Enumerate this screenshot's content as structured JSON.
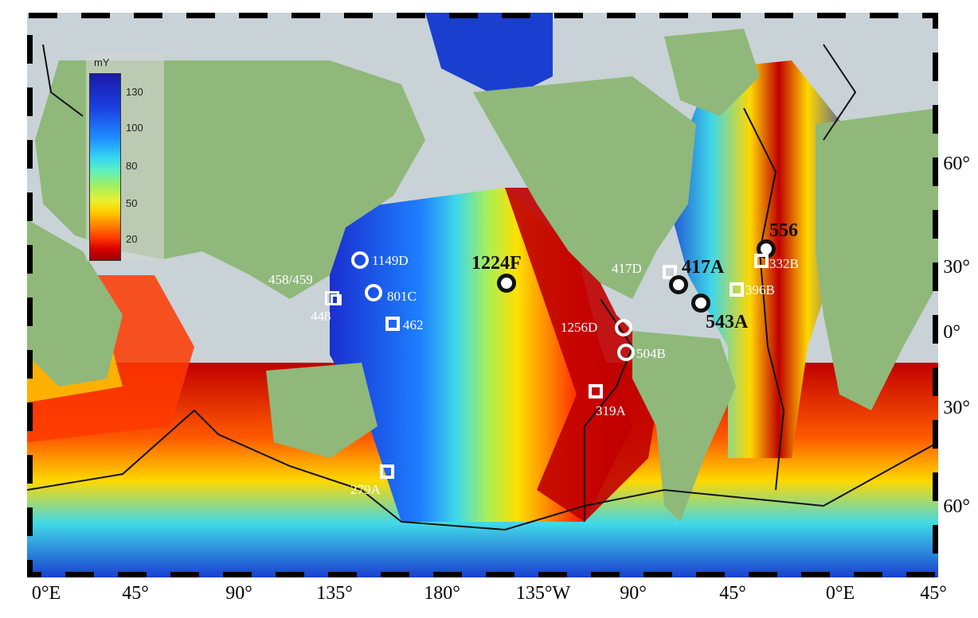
{
  "legend": {
    "title": "mY",
    "ticks": [
      "130",
      "100",
      "80",
      "50",
      "20"
    ]
  },
  "lat_labels": [
    "60°",
    "30°",
    "0°",
    "30°",
    "60°"
  ],
  "lon_labels": [
    "0°E",
    "45°",
    "90°",
    "135°",
    "180°",
    "135°W",
    "90°",
    "45°",
    "0°E",
    "45°"
  ],
  "sites": {
    "s1149D": "1149D",
    "s801C": "801C",
    "s458": "458/459",
    "s448": "448",
    "s462": "462",
    "s279A": "279A",
    "s1224F": "1224F",
    "s1256D": "1256D",
    "s504B": "504B",
    "s319A": "319A",
    "s417D": "417D",
    "s417A": "417A",
    "s543A": "543A",
    "s556": "556",
    "s332B": "332B",
    "s396B": "396B"
  },
  "colors": {
    "ocean_young": "#d90000",
    "ocean_old": "#1a2fd0",
    "land": "#8fb87a",
    "ice": "#c9d2d6",
    "marker_white": "#ffffff",
    "marker_black": "#111111"
  }
}
